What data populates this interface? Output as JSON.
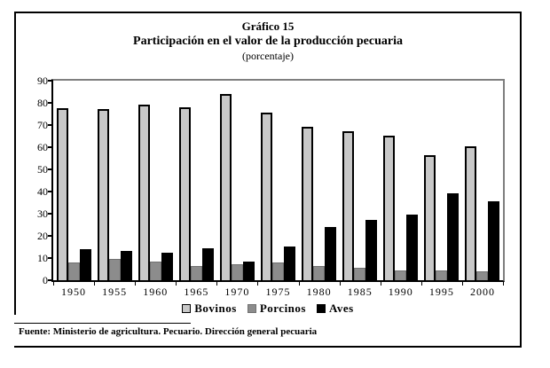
{
  "figure": {
    "title_line1": "Gráfico 15",
    "title_line2": "Participación en el valor de la producción pecuaria",
    "title_line3": "(porcentaje)",
    "source_note": "Fuente: Ministerio de agricultura. Pecuario. Dirección general pecuaria"
  },
  "legend": {
    "items": [
      {
        "label": "Bovinos",
        "color": "#c8c8c8",
        "border": "#000000"
      },
      {
        "label": "Porcinos",
        "color": "#8c8c8c",
        "border": "#707070"
      },
      {
        "label": "Aves",
        "color": "#000000",
        "border": "#000000"
      }
    ]
  },
  "chart_data": {
    "type": "bar",
    "title": "Gráfico 15 — Participación en el valor de la producción pecuaria (porcentaje)",
    "categories": [
      "1950",
      "1955",
      "1960",
      "1965",
      "1970",
      "1975",
      "1980",
      "1985",
      "1990",
      "1995",
      "2000"
    ],
    "series": [
      {
        "name": "Bovinos",
        "color": "#c8c8c8",
        "values": [
          77.5,
          77,
          79,
          78,
          84,
          75.5,
          69,
          67,
          65,
          56.5,
          60.5
        ]
      },
      {
        "name": "Porcinos",
        "color": "#8c8c8c",
        "values": [
          8,
          9.5,
          8.5,
          6.5,
          7,
          8,
          6.5,
          5.5,
          4.5,
          4.5,
          4
        ]
      },
      {
        "name": "Aves",
        "color": "#000000",
        "values": [
          14,
          13,
          12.5,
          14.5,
          8.5,
          15,
          24,
          27,
          29.5,
          39,
          35.5
        ]
      }
    ],
    "xlabel": "",
    "ylabel": "",
    "ylim": [
      0,
      90
    ],
    "yticks": [
      0,
      10,
      20,
      30,
      40,
      50,
      60,
      70,
      80,
      90
    ],
    "grid": false,
    "legend_position": "bottom",
    "frame_color": "#7f7f7f"
  }
}
